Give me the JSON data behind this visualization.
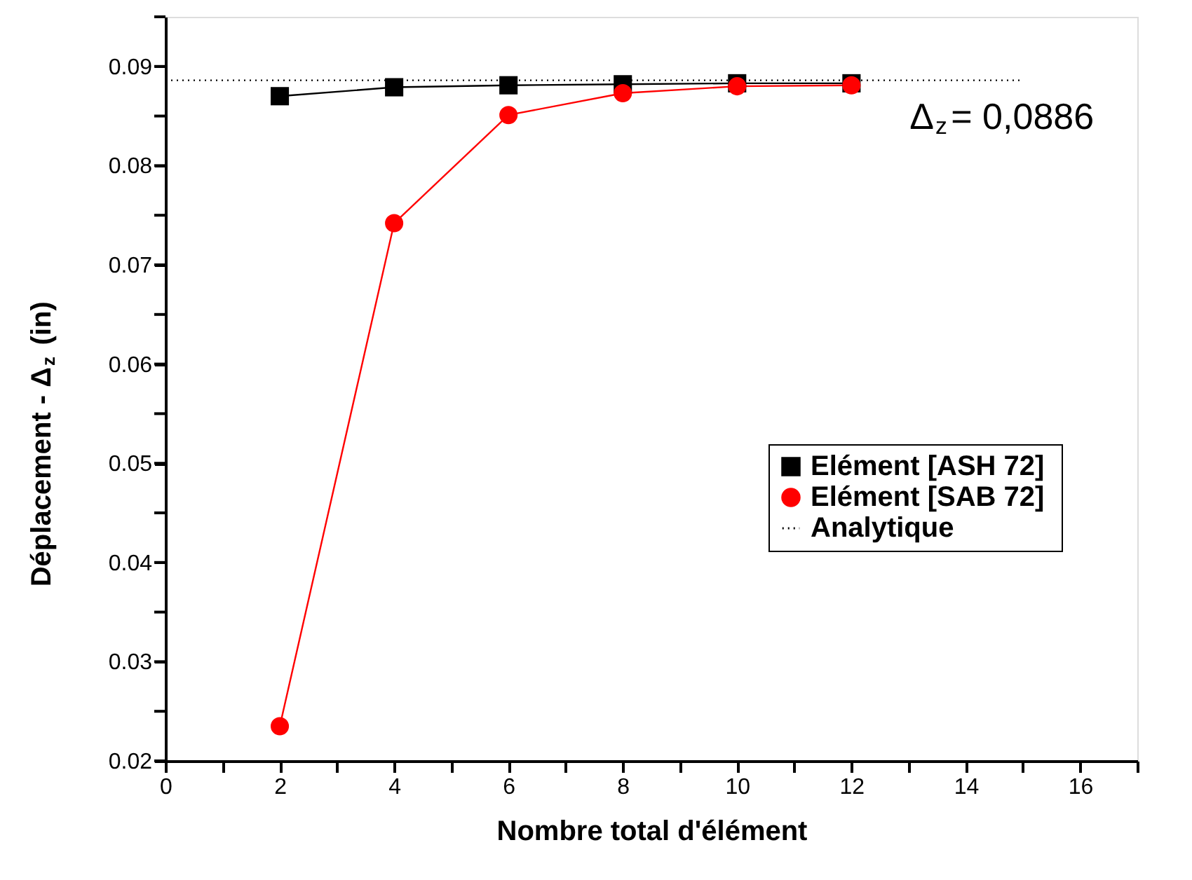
{
  "chart_data": {
    "type": "line",
    "xlabel": "Nombre total d'élément",
    "ylabel": "Déplacement - Δ$_{z}$ (in)",
    "xlim": [
      0,
      17
    ],
    "ylim": [
      0.02,
      0.095
    ],
    "xticks": [
      0,
      {
        "value": 1,
        "label": null
      },
      2,
      {
        "value": 3,
        "label": null
      },
      4,
      {
        "value": 5,
        "label": null
      },
      6,
      {
        "value": 7,
        "label": null
      },
      8,
      {
        "value": 9,
        "label": null
      },
      10,
      {
        "value": 11,
        "label": null
      },
      12,
      {
        "value": 13,
        "label": null
      },
      14,
      {
        "value": 15,
        "label": null
      },
      16,
      {
        "value": 17,
        "label": null
      }
    ],
    "yticks": [
      0.02,
      {
        "value": 0.025,
        "label": null
      },
      0.03,
      {
        "value": 0.035,
        "label": null
      },
      0.04,
      {
        "value": 0.045,
        "label": null
      },
      0.05,
      {
        "value": 0.055,
        "label": null
      },
      0.06,
      {
        "value": 0.065,
        "label": null
      },
      0.07,
      {
        "value": 0.075,
        "label": null
      },
      0.08,
      {
        "value": 0.085,
        "label": null
      },
      0.09,
      {
        "value": 0.095,
        "label": null
      }
    ],
    "series": [
      {
        "name": "Elément  [ASH 72]",
        "color": "#000000",
        "marker": "square",
        "x": [
          2,
          4,
          6,
          8,
          10,
          12
        ],
        "values": [
          0.087,
          0.0879,
          0.0881,
          0.0882,
          0.0883,
          0.0883
        ]
      },
      {
        "name": "Elément  [SAB 72]",
        "color": "#ff0000",
        "marker": "circle",
        "x": [
          2,
          4,
          6,
          8,
          10,
          12
        ],
        "values": [
          0.0235,
          0.0742,
          0.0851,
          0.0873,
          0.088,
          0.0881
        ]
      },
      {
        "name": "Analytique",
        "color": "#000000",
        "marker": "none",
        "line_style": "dotted",
        "x": [
          0,
          15
        ],
        "values": [
          0.0886,
          0.0886
        ]
      }
    ],
    "annotations": [
      "Δ$_{z}$= 0,0886"
    ],
    "legend": "right",
    "grid": false
  }
}
